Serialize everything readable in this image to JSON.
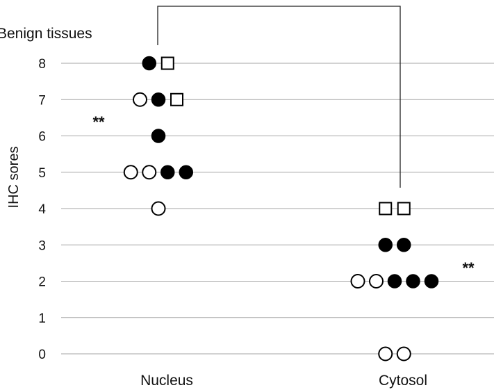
{
  "chart_data": {
    "type": "scatter",
    "title": "Benign tissues",
    "ylabel": "IHC sores",
    "xlabel": "",
    "categories": [
      "Nucleus",
      "Cytosol"
    ],
    "ylim": [
      0,
      8
    ],
    "yticks": [
      "0",
      "1",
      "2",
      "3",
      "4",
      "5",
      "6",
      "7",
      "8"
    ],
    "grid": true,
    "significance_markers": [
      "**",
      "**"
    ],
    "marker_types": {
      "open_circle": "#ffffff",
      "filled_circle": "#000000",
      "open_square": "#ffffff"
    },
    "points": {
      "Nucleus": [
        {
          "y": 8,
          "markers": [
            "filled_circle",
            "open_square"
          ]
        },
        {
          "y": 7,
          "markers": [
            "open_circle",
            "filled_circle",
            "open_square"
          ]
        },
        {
          "y": 6,
          "markers": [
            "filled_circle"
          ]
        },
        {
          "y": 5,
          "markers": [
            "open_circle",
            "open_circle",
            "filled_circle",
            "filled_circle"
          ]
        },
        {
          "y": 4,
          "markers": [
            "open_circle"
          ]
        }
      ],
      "Cytosol": [
        {
          "y": 4,
          "markers": [
            "open_square",
            "open_square"
          ]
        },
        {
          "y": 3,
          "markers": [
            "filled_circle",
            "filled_circle"
          ]
        },
        {
          "y": 2,
          "markers": [
            "open_circle",
            "open_circle",
            "filled_circle",
            "filled_circle",
            "filled_circle"
          ]
        },
        {
          "y": 0,
          "markers": [
            "open_circle",
            "open_circle"
          ]
        }
      ]
    }
  }
}
